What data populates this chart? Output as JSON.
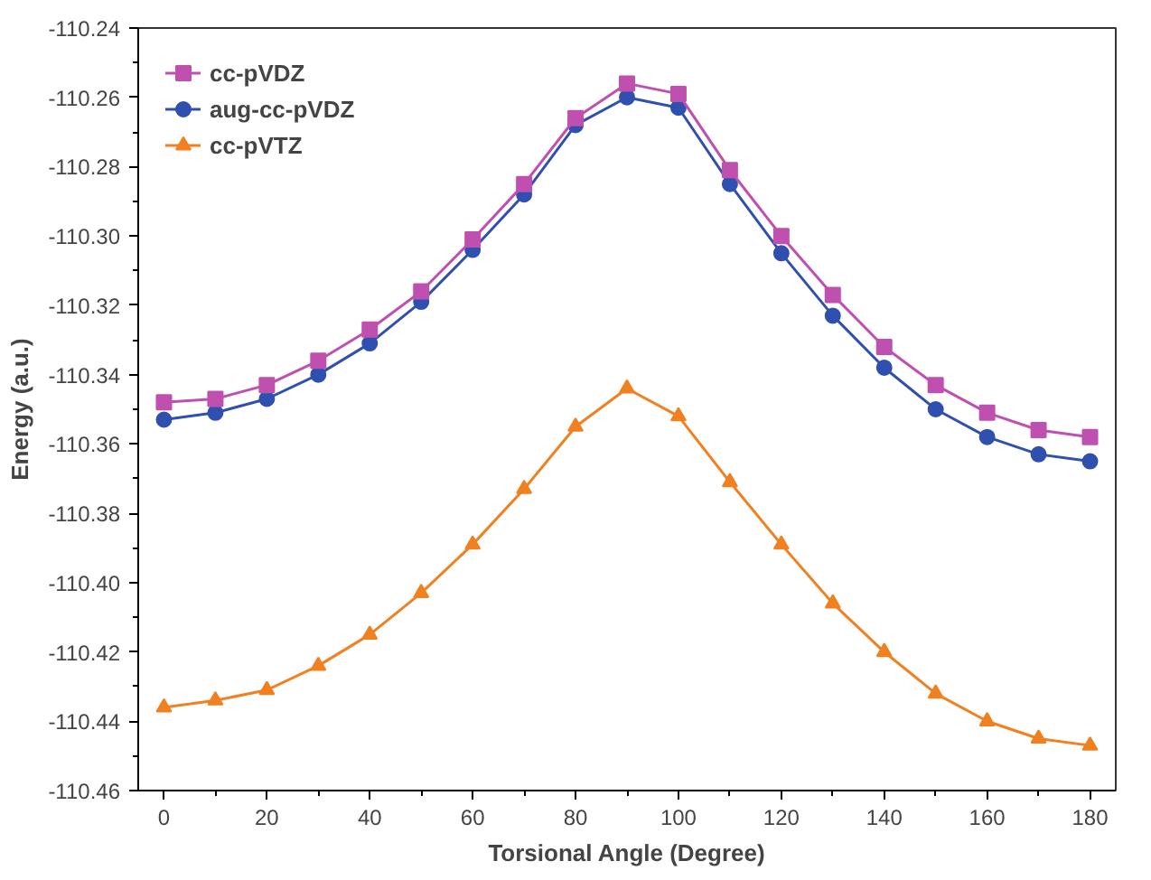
{
  "chart_data": {
    "type": "line",
    "xlabel": "Torsional Angle (Degree)",
    "ylabel": "Energy (a.u.)",
    "x": [
      0,
      10,
      20,
      30,
      40,
      50,
      60,
      70,
      80,
      90,
      100,
      110,
      120,
      130,
      140,
      150,
      160,
      170,
      180
    ],
    "series": [
      {
        "name": "cc-pVDZ",
        "color": "#c050b0",
        "marker": "square",
        "values": [
          -110.348,
          -110.347,
          -110.343,
          -110.336,
          -110.327,
          -110.316,
          -110.301,
          -110.285,
          -110.266,
          -110.256,
          -110.259,
          -110.281,
          -110.3,
          -110.317,
          -110.332,
          -110.343,
          -110.351,
          -110.356,
          -110.358
        ]
      },
      {
        "name": "aug-cc-pVDZ",
        "color": "#3050b0",
        "marker": "circle",
        "values": [
          -110.353,
          -110.351,
          -110.347,
          -110.34,
          -110.331,
          -110.319,
          -110.304,
          -110.288,
          -110.268,
          -110.26,
          -110.263,
          -110.285,
          -110.305,
          -110.323,
          -110.338,
          -110.35,
          -110.358,
          -110.363,
          -110.365
        ]
      },
      {
        "name": "cc-pVTZ",
        "color": "#f08020",
        "marker": "triangle",
        "values": [
          -110.436,
          -110.434,
          -110.431,
          -110.424,
          -110.415,
          -110.403,
          -110.389,
          -110.373,
          -110.355,
          -110.344,
          -110.352,
          -110.371,
          -110.389,
          -110.406,
          -110.42,
          -110.432,
          -110.44,
          -110.445,
          -110.447
        ]
      }
    ],
    "xlim": [
      -5,
      185
    ],
    "xticks": [
      0,
      20,
      40,
      60,
      80,
      100,
      120,
      140,
      160,
      180
    ],
    "ylim": [
      -110.46,
      -110.24
    ],
    "yticks": [
      {
        "value": -110.46,
        "label": "-110.46"
      },
      {
        "value": -110.44,
        "label": "-110.44"
      },
      {
        "value": -110.42,
        "label": "-110.42"
      },
      {
        "value": -110.4,
        "label": "-110.40"
      },
      {
        "value": -110.38,
        "label": "-110.38"
      },
      {
        "value": -110.36,
        "label": "-110.36"
      },
      {
        "value": -110.34,
        "label": "-110.34"
      },
      {
        "value": -110.32,
        "label": "-110.32"
      },
      {
        "value": -110.3,
        "label": "-110.30"
      },
      {
        "value": -110.28,
        "label": "-110.28"
      },
      {
        "value": -110.26,
        "label": "-110.26"
      },
      {
        "value": -110.24,
        "label": "-110.24"
      }
    ],
    "grid": false,
    "legend": "top left",
    "line_style": "solid"
  }
}
